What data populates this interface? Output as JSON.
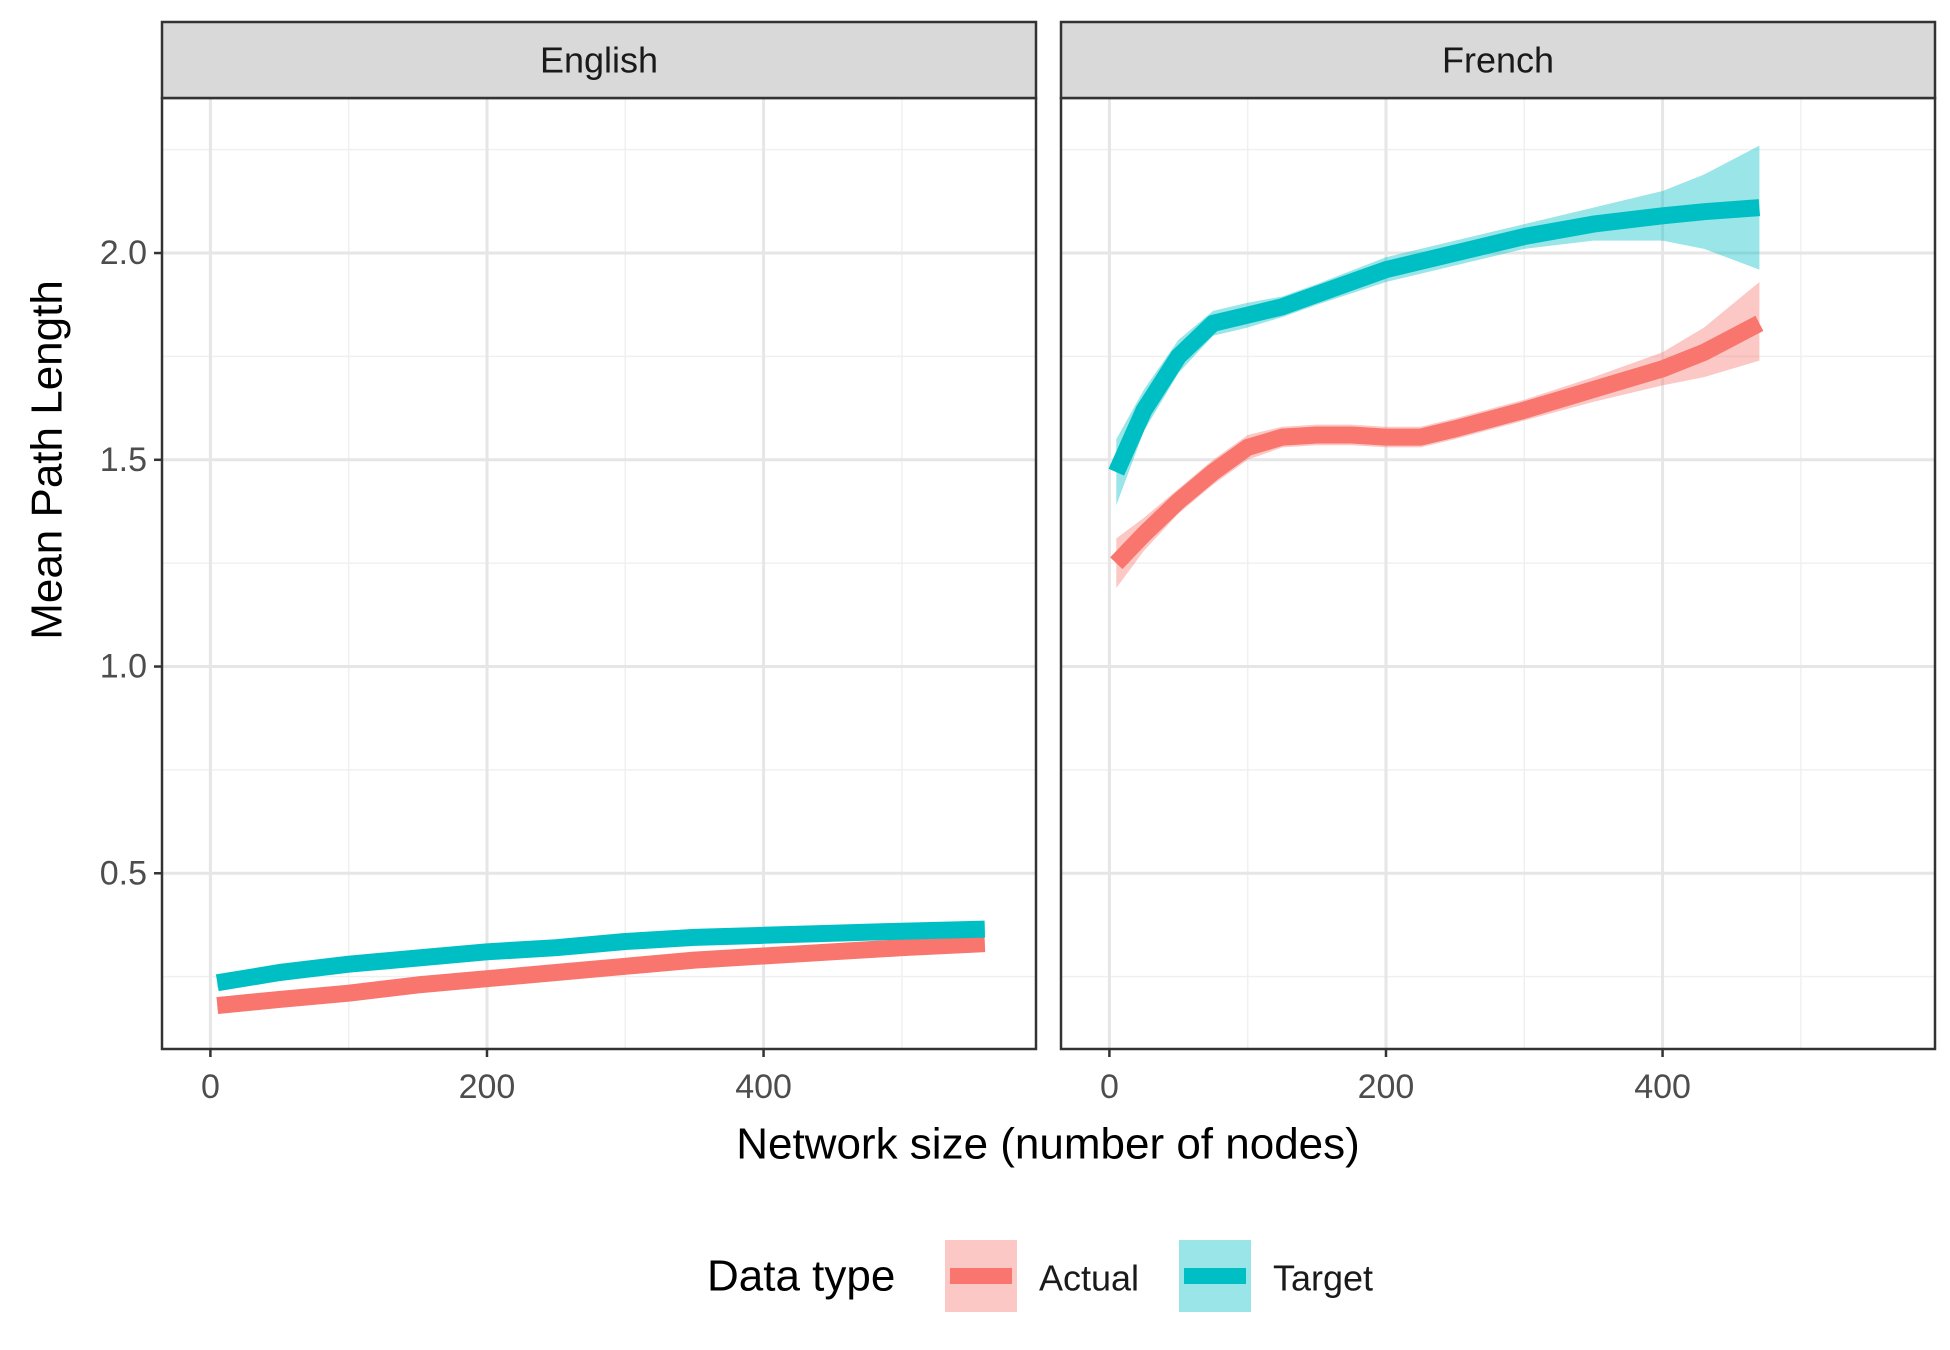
{
  "chart_data": {
    "type": "line",
    "xlabel": "Network size (number of nodes)",
    "ylabel": "Mean Path Length",
    "xlim": [
      -35,
      597
    ],
    "ylim": [
      0.075,
      2.375
    ],
    "x_ticks": [
      0,
      200,
      400
    ],
    "y_ticks": [
      0.5,
      1.0,
      1.5,
      2.0
    ],
    "y_tick_labels": [
      "0.5",
      "1.0",
      "1.5",
      "2.0"
    ],
    "grid": true,
    "legend": {
      "title": "Data type",
      "position": "bottom",
      "entries": [
        {
          "label": "Actual",
          "color": "#F8766D"
        },
        {
          "label": "Target",
          "color": "#00BFC4"
        }
      ]
    },
    "panels": [
      {
        "strip": "English",
        "series": [
          {
            "name": "Actual",
            "color": "#F8766D",
            "x": [
              5,
              50,
              100,
              150,
              200,
              250,
              300,
              350,
              400,
              450,
              500,
              560
            ],
            "y": [
              0.18,
              0.195,
              0.21,
              0.23,
              0.245,
              0.26,
              0.275,
              0.29,
              0.3,
              0.31,
              0.32,
              0.33
            ],
            "lower": [
              0.17,
              0.185,
              0.2,
              0.22,
              0.235,
              0.25,
              0.265,
              0.28,
              0.29,
              0.3,
              0.31,
              0.32
            ],
            "upper": [
              0.19,
              0.205,
              0.22,
              0.24,
              0.255,
              0.27,
              0.285,
              0.3,
              0.31,
              0.32,
              0.33,
              0.34
            ]
          },
          {
            "name": "Target",
            "color": "#00BFC4",
            "x": [
              5,
              50,
              100,
              150,
              200,
              250,
              300,
              350,
              400,
              450,
              500,
              560
            ],
            "y": [
              0.235,
              0.26,
              0.28,
              0.295,
              0.31,
              0.32,
              0.335,
              0.345,
              0.35,
              0.355,
              0.36,
              0.365
            ],
            "lower": [
              0.225,
              0.25,
              0.27,
              0.285,
              0.3,
              0.31,
              0.325,
              0.335,
              0.34,
              0.345,
              0.35,
              0.355
            ],
            "upper": [
              0.245,
              0.27,
              0.29,
              0.305,
              0.32,
              0.33,
              0.345,
              0.355,
              0.36,
              0.365,
              0.37,
              0.375
            ]
          }
        ]
      },
      {
        "strip": "French",
        "series": [
          {
            "name": "Actual",
            "color": "#F8766D",
            "x": [
              5,
              25,
              50,
              75,
              100,
              125,
              150,
              175,
              200,
              225,
              250,
              300,
              350,
              400,
              430,
              470
            ],
            "y": [
              1.25,
              1.32,
              1.4,
              1.47,
              1.53,
              1.555,
              1.56,
              1.56,
              1.555,
              1.555,
              1.575,
              1.62,
              1.67,
              1.72,
              1.76,
              1.83
            ],
            "lower": [
              1.19,
              1.28,
              1.37,
              1.44,
              1.5,
              1.53,
              1.535,
              1.535,
              1.53,
              1.53,
              1.55,
              1.595,
              1.64,
              1.68,
              1.7,
              1.74
            ],
            "upper": [
              1.31,
              1.36,
              1.43,
              1.5,
              1.56,
              1.58,
              1.585,
              1.585,
              1.58,
              1.58,
              1.6,
              1.645,
              1.7,
              1.76,
              1.82,
              1.93
            ]
          },
          {
            "name": "Target",
            "color": "#00BFC4",
            "x": [
              5,
              25,
              50,
              75,
              100,
              125,
              150,
              200,
              250,
              300,
              350,
              400,
              430,
              470
            ],
            "y": [
              1.47,
              1.62,
              1.75,
              1.83,
              1.85,
              1.87,
              1.9,
              1.96,
              2.0,
              2.04,
              2.07,
              2.09,
              2.1,
              2.11
            ],
            "lower": [
              1.39,
              1.57,
              1.71,
              1.8,
              1.82,
              1.845,
              1.875,
              1.93,
              1.97,
              2.01,
              2.03,
              2.03,
              2.01,
              1.96
            ],
            "upper": [
              1.55,
              1.67,
              1.79,
              1.86,
              1.88,
              1.895,
              1.925,
              1.99,
              2.03,
              2.07,
              2.11,
              2.15,
              2.19,
              2.26
            ]
          }
        ]
      }
    ]
  }
}
